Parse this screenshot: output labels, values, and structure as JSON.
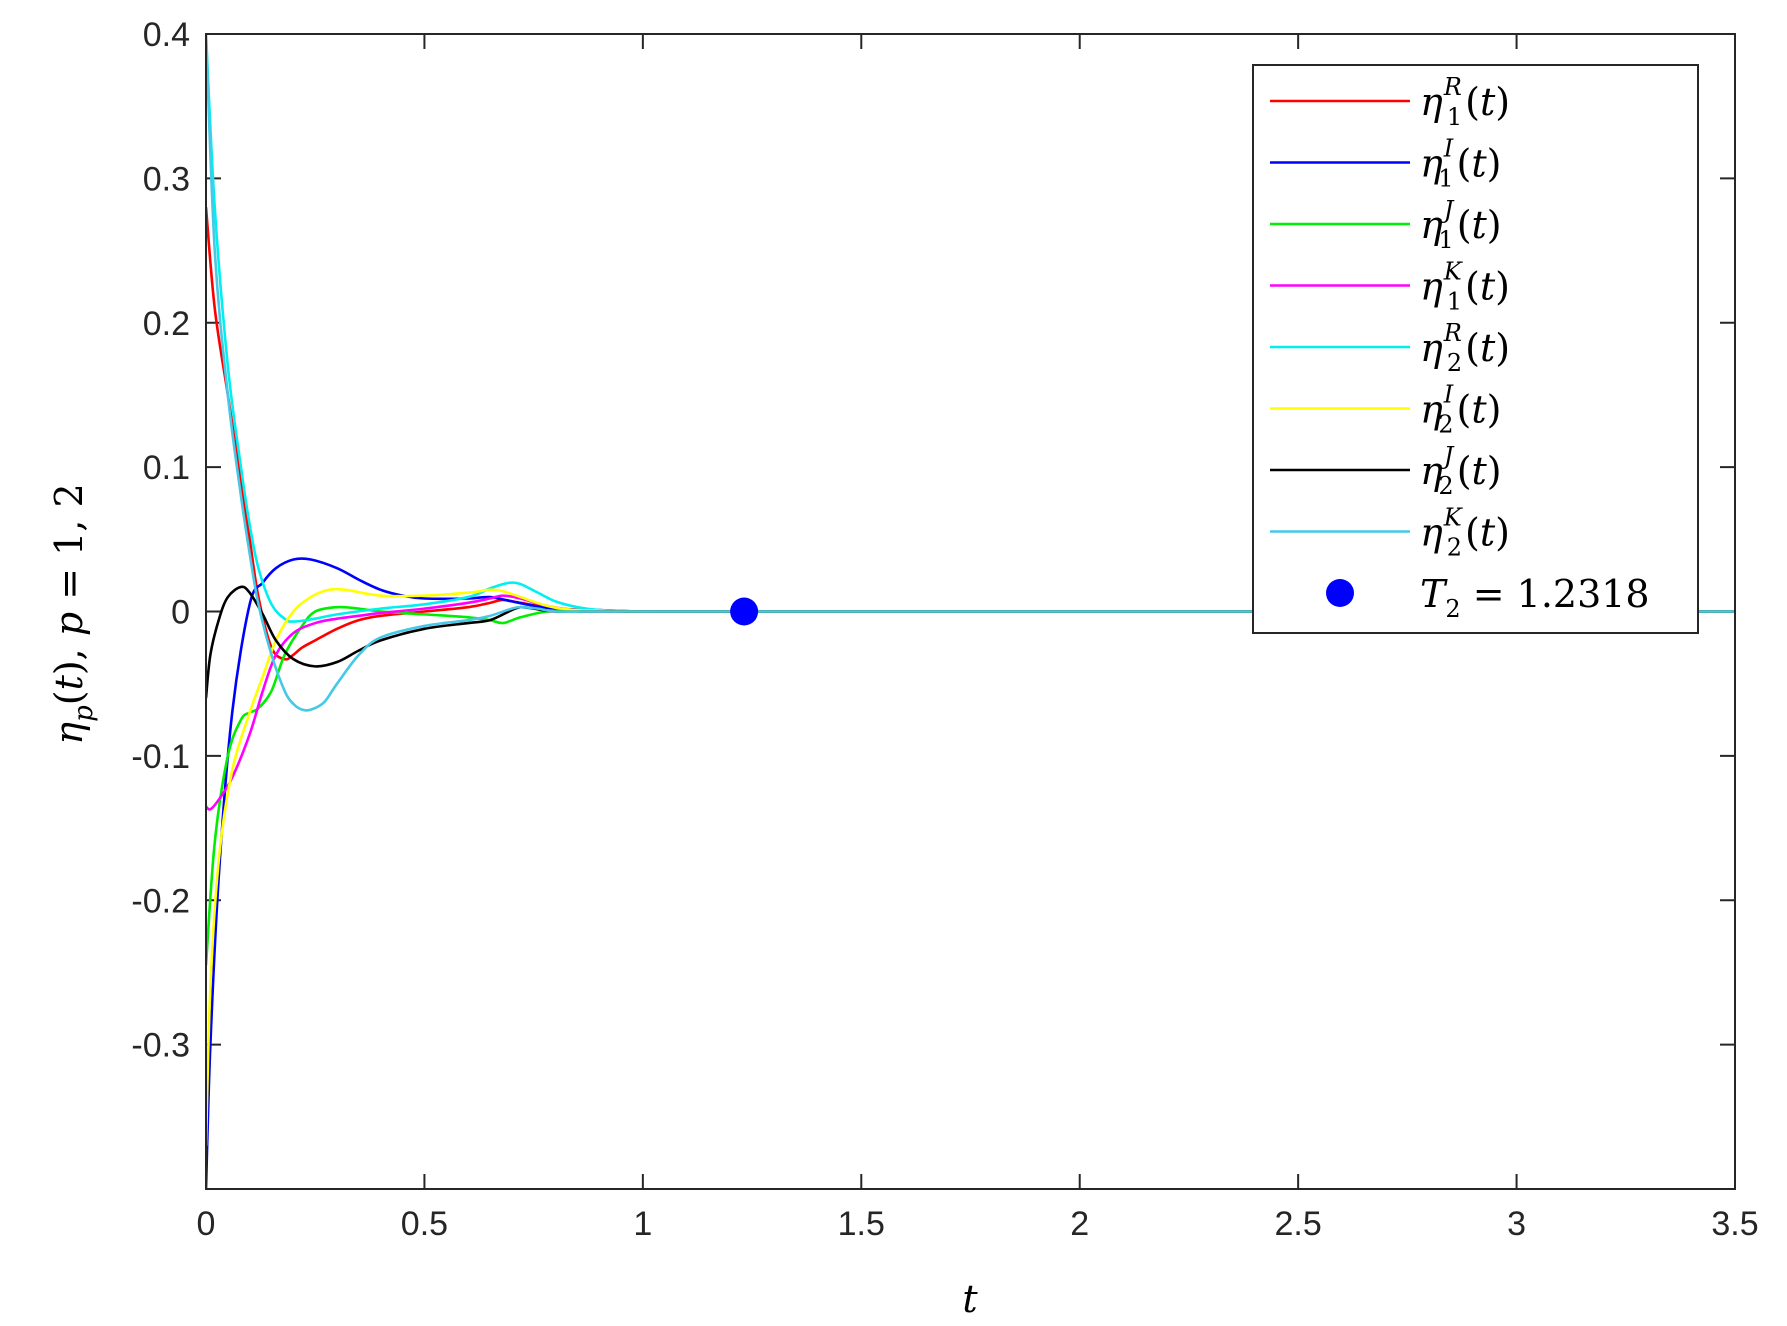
{
  "chart_data": {
    "type": "line",
    "xlabel": "t",
    "ylabel": "ηp(t), p = 1, 2",
    "xlim": [
      0,
      3.5
    ],
    "ylim": [
      -0.4,
      0.4
    ],
    "x_ticks": [
      "0",
      "0.5",
      "1",
      "1.5",
      "2",
      "2.5",
      "3",
      "3.5"
    ],
    "y_ticks": [
      "-0.3",
      "-0.2",
      "-0.1",
      "0",
      "0.1",
      "0.2",
      "0.3",
      "0.4"
    ],
    "grid": false,
    "legend_position": "top-right",
    "series": [
      {
        "name": "η1R(t)",
        "sup": "R",
        "sub": "1",
        "color": "#ff0000",
        "x": [
          0,
          0.02,
          0.05,
          0.08,
          0.1,
          0.12,
          0.15,
          0.18,
          0.2,
          0.22,
          0.25,
          0.3,
          0.35,
          0.4,
          0.5,
          0.6,
          0.65,
          0.68,
          0.72,
          0.78,
          0.85,
          1.0,
          1.2,
          3.5
        ],
        "y": [
          0.28,
          0.21,
          0.15,
          0.09,
          0.05,
          0.01,
          -0.025,
          -0.033,
          -0.03,
          -0.025,
          -0.02,
          -0.012,
          -0.006,
          -0.003,
          0.0,
          0.003,
          0.006,
          0.008,
          0.006,
          0.003,
          0.001,
          0.0,
          0.0,
          0.0
        ]
      },
      {
        "name": "η1I(t)",
        "sup": "I",
        "sub": "1",
        "color": "#0000ff",
        "x": [
          0,
          0.01,
          0.03,
          0.06,
          0.1,
          0.13,
          0.16,
          0.2,
          0.24,
          0.3,
          0.35,
          0.4,
          0.45,
          0.5,
          0.6,
          0.65,
          0.7,
          0.75,
          0.8,
          0.9,
          1.0,
          1.2,
          3.5
        ],
        "y": [
          -0.4,
          -0.3,
          -0.18,
          -0.07,
          0.005,
          0.02,
          0.03,
          0.036,
          0.036,
          0.03,
          0.022,
          0.015,
          0.011,
          0.009,
          0.009,
          0.01,
          0.007,
          0.004,
          0.002,
          0.001,
          0.0,
          0.0,
          0.0
        ]
      },
      {
        "name": "η1J(t)",
        "sup": "J",
        "sub": "1",
        "color": "#00ee00",
        "x": [
          0,
          0.02,
          0.05,
          0.08,
          0.1,
          0.12,
          0.15,
          0.18,
          0.22,
          0.25,
          0.3,
          0.35,
          0.4,
          0.5,
          0.6,
          0.65,
          0.68,
          0.72,
          0.78,
          0.85,
          1.0,
          1.2,
          3.5
        ],
        "y": [
          -0.245,
          -0.16,
          -0.1,
          -0.075,
          -0.07,
          -0.067,
          -0.055,
          -0.03,
          -0.01,
          0.0,
          0.003,
          0.002,
          0.0,
          -0.002,
          -0.004,
          -0.006,
          -0.008,
          -0.004,
          0.0,
          0.001,
          0.0,
          0.0,
          0.0
        ]
      },
      {
        "name": "η1K(t)",
        "sup": "K",
        "sub": "1",
        "color": "#ff00ff",
        "x": [
          0,
          0.01,
          0.03,
          0.06,
          0.1,
          0.13,
          0.16,
          0.2,
          0.25,
          0.3,
          0.35,
          0.4,
          0.5,
          0.6,
          0.65,
          0.68,
          0.72,
          0.78,
          0.85,
          1.0,
          1.2,
          3.5
        ],
        "y": [
          -0.135,
          -0.137,
          -0.13,
          -0.115,
          -0.085,
          -0.055,
          -0.03,
          -0.015,
          -0.008,
          -0.005,
          -0.003,
          -0.001,
          0.002,
          0.006,
          0.009,
          0.011,
          0.009,
          0.004,
          0.001,
          0.0,
          0.0,
          0.0
        ]
      },
      {
        "name": "η2R(t)",
        "sup": "R",
        "sub": "2",
        "color": "#00f0f0",
        "x": [
          0,
          0.02,
          0.05,
          0.08,
          0.1,
          0.12,
          0.15,
          0.18,
          0.2,
          0.25,
          0.3,
          0.4,
          0.5,
          0.6,
          0.65,
          0.68,
          0.7,
          0.72,
          0.76,
          0.8,
          0.85,
          0.9,
          1.0,
          1.2,
          3.5
        ],
        "y": [
          0.4,
          0.28,
          0.17,
          0.1,
          0.06,
          0.03,
          0.005,
          -0.005,
          -0.007,
          -0.005,
          -0.002,
          0.002,
          0.005,
          0.01,
          0.016,
          0.019,
          0.02,
          0.019,
          0.013,
          0.007,
          0.003,
          0.001,
          0.0,
          0.0,
          0.0
        ]
      },
      {
        "name": "η2I(t)",
        "sup": "I",
        "sub": "2",
        "color": "#ffff00",
        "x": [
          0,
          0.01,
          0.03,
          0.06,
          0.1,
          0.13,
          0.16,
          0.2,
          0.24,
          0.28,
          0.32,
          0.4,
          0.5,
          0.6,
          0.65,
          0.68,
          0.72,
          0.78,
          0.85,
          1.0,
          1.2,
          3.5
        ],
        "y": [
          -0.37,
          -0.26,
          -0.17,
          -0.11,
          -0.07,
          -0.045,
          -0.02,
          0.0,
          0.01,
          0.015,
          0.015,
          0.011,
          0.011,
          0.013,
          0.015,
          0.014,
          0.01,
          0.004,
          0.001,
          0.0,
          0.0,
          0.0
        ]
      },
      {
        "name": "η2J(t)",
        "sup": "J",
        "sub": "2",
        "color": "#000000",
        "x": [
          0,
          0.01,
          0.03,
          0.05,
          0.08,
          0.1,
          0.13,
          0.16,
          0.2,
          0.25,
          0.3,
          0.35,
          0.4,
          0.5,
          0.6,
          0.65,
          0.7,
          0.72,
          0.75,
          0.8,
          0.9,
          1.0,
          1.2,
          3.5
        ],
        "y": [
          -0.06,
          -0.03,
          -0.005,
          0.01,
          0.017,
          0.013,
          -0.002,
          -0.02,
          -0.033,
          -0.038,
          -0.035,
          -0.027,
          -0.02,
          -0.012,
          -0.008,
          -0.006,
          0.001,
          0.003,
          0.002,
          0.0,
          0.0,
          0.0,
          0.0,
          0.0
        ]
      },
      {
        "name": "η2K(t)",
        "sup": "K",
        "sub": "2",
        "color": "#46c8e6",
        "x": [
          0,
          0.02,
          0.05,
          0.08,
          0.1,
          0.12,
          0.15,
          0.18,
          0.2,
          0.22,
          0.24,
          0.27,
          0.3,
          0.35,
          0.4,
          0.5,
          0.6,
          0.65,
          0.7,
          0.72,
          0.76,
          0.8,
          0.9,
          1.0,
          1.2,
          3.5
        ],
        "y": [
          0.4,
          0.25,
          0.15,
          0.08,
          0.04,
          0.005,
          -0.03,
          -0.055,
          -0.064,
          -0.068,
          -0.068,
          -0.063,
          -0.05,
          -0.03,
          -0.018,
          -0.01,
          -0.006,
          -0.003,
          0.002,
          0.003,
          0.002,
          0.0,
          0.0,
          0.0,
          0.0,
          0.0
        ]
      }
    ],
    "markers": [
      {
        "name": "T2 = 1.2318",
        "x": 1.2318,
        "y": 0,
        "color": "#0000ff"
      }
    ]
  }
}
